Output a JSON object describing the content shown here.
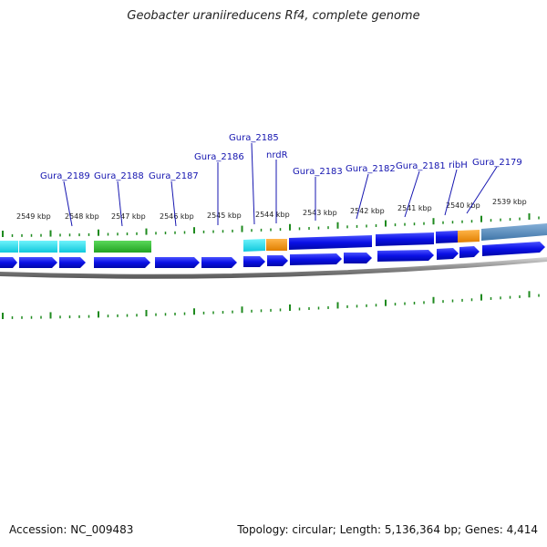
{
  "title": "Geobacter uraniireducens Rf4, complete genome",
  "footer": {
    "accession": "Accession: NC_009483",
    "summary": "Topology: circular; Length: 5,136,364 bp; Genes: 4,414"
  },
  "colors": {
    "cds": "#0a10e6",
    "cyan": "#19e3f0",
    "green": "#36c030",
    "orange": "#f39a16",
    "steelblue": "#5a8fc0",
    "tick": "#1e8a1e",
    "label": "#1515b0"
  },
  "scale_labels": [
    "2549 kbp",
    "2548 kbp",
    "2547 kbp",
    "2546 kbp",
    "2545 kbp",
    "2544 kbp",
    "2543 kbp",
    "2542 kbp",
    "2541 kbp",
    "2540 kbp",
    "2539 kbp"
  ],
  "gene_labels": [
    "Gura_2189",
    "Gura_2188",
    "Gura_2187",
    "Gura_2186",
    "Gura_2185",
    "nrdR",
    "Gura_2183",
    "Gura_2182",
    "Gura_2181",
    "ribH",
    "Gura_2179"
  ]
}
